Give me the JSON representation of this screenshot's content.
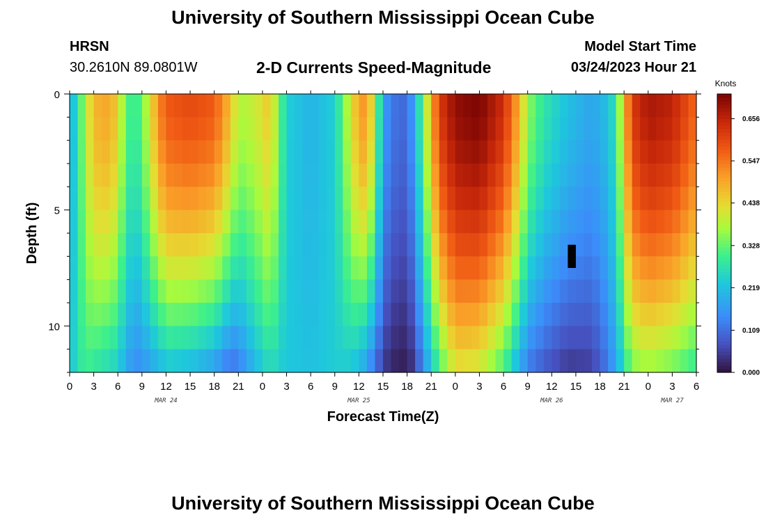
{
  "header": {
    "title": "University of Southern Mississippi Ocean Cube",
    "station": "HRSN",
    "coords": "30.2610N  89.0801W",
    "subtitle": "2-D Currents Speed-Magnitude",
    "start_label": "Model Start Time",
    "start_time": "03/24/2023 Hour 21"
  },
  "footer": {
    "title": "University of Southern Mississippi Ocean Cube"
  },
  "chart_data": {
    "type": "heatmap",
    "title": "2-D Currents Speed-Magnitude",
    "xlabel": "Forecast Time(Z)",
    "ylabel": "Depth (ft)",
    "colorbar_label": "Knots",
    "x_hours": [
      0,
      78
    ],
    "x_tick_labels": [
      "0",
      "3",
      "6",
      "9",
      "12",
      "15",
      "18",
      "21",
      "0",
      "3",
      "6",
      "9",
      "12",
      "15",
      "18",
      "21",
      "0",
      "3",
      "6",
      "9",
      "12",
      "15",
      "18",
      "21",
      "0",
      "3",
      "6"
    ],
    "date_labels": [
      {
        "label": "MAR 24",
        "hour": 12
      },
      {
        "label": "MAR 25",
        "hour": 36
      },
      {
        "label": "MAR 26",
        "hour": 60
      },
      {
        "label": "MAR 27",
        "hour": 75
      }
    ],
    "y_range": [
      0,
      12
    ],
    "y_tick_labels": [
      "0",
      "5",
      "10"
    ],
    "y_tick_values": [
      0,
      5,
      10
    ],
    "colorbar_ticks": [
      "0.000",
      "0.109",
      "0.219",
      "0.328",
      "0.438",
      "0.547",
      "0.656"
    ],
    "colorbar_tick_values": [
      0.0,
      0.109,
      0.219,
      0.328,
      0.438,
      0.547,
      0.656
    ],
    "vmin": 0.0,
    "vmax": 0.72,
    "depth_levels": [
      0,
      1,
      2,
      3,
      4,
      5,
      6,
      7,
      8,
      9,
      10,
      11,
      12
    ],
    "time_profile": [
      {
        "hour": 0,
        "surface": 0.18,
        "bottom": 0.22
      },
      {
        "hour": 1,
        "surface": 0.28,
        "bottom": 0.27
      },
      {
        "hour": 2,
        "surface": 0.38,
        "bottom": 0.3
      },
      {
        "hour": 3,
        "surface": 0.48,
        "bottom": 0.28
      },
      {
        "hour": 5,
        "surface": 0.5,
        "bottom": 0.25
      },
      {
        "hour": 6,
        "surface": 0.44,
        "bottom": 0.24
      },
      {
        "hour": 7,
        "surface": 0.33,
        "bottom": 0.18
      },
      {
        "hour": 8,
        "surface": 0.28,
        "bottom": 0.15
      },
      {
        "hour": 9,
        "surface": 0.33,
        "bottom": 0.14
      },
      {
        "hour": 10,
        "surface": 0.42,
        "bottom": 0.18
      },
      {
        "hour": 11,
        "surface": 0.52,
        "bottom": 0.18
      },
      {
        "hour": 12,
        "surface": 0.58,
        "bottom": 0.22
      },
      {
        "hour": 15,
        "surface": 0.6,
        "bottom": 0.2
      },
      {
        "hour": 18,
        "surface": 0.58,
        "bottom": 0.16
      },
      {
        "hour": 20,
        "surface": 0.47,
        "bottom": 0.1
      },
      {
        "hour": 21,
        "surface": 0.38,
        "bottom": 0.12
      },
      {
        "hour": 23,
        "surface": 0.4,
        "bottom": 0.2
      },
      {
        "hour": 25,
        "surface": 0.46,
        "bottom": 0.26
      },
      {
        "hour": 26,
        "surface": 0.34,
        "bottom": 0.24
      },
      {
        "hour": 27,
        "surface": 0.24,
        "bottom": 0.23
      },
      {
        "hour": 30,
        "surface": 0.2,
        "bottom": 0.22
      },
      {
        "hour": 33,
        "surface": 0.24,
        "bottom": 0.24
      },
      {
        "hour": 35,
        "surface": 0.42,
        "bottom": 0.23
      },
      {
        "hour": 36,
        "surface": 0.5,
        "bottom": 0.2
      },
      {
        "hour": 37,
        "surface": 0.52,
        "bottom": 0.16
      },
      {
        "hour": 38,
        "surface": 0.38,
        "bottom": 0.1
      },
      {
        "hour": 39,
        "surface": 0.18,
        "bottom": 0.05
      },
      {
        "hour": 40,
        "surface": 0.12,
        "bottom": 0.02
      },
      {
        "hour": 42,
        "surface": 0.1,
        "bottom": 0.01
      },
      {
        "hour": 43,
        "surface": 0.2,
        "bottom": 0.05
      },
      {
        "hour": 44,
        "surface": 0.34,
        "bottom": 0.14
      },
      {
        "hour": 46,
        "surface": 0.62,
        "bottom": 0.3
      },
      {
        "hour": 48,
        "surface": 0.7,
        "bottom": 0.42
      },
      {
        "hour": 51,
        "surface": 0.72,
        "bottom": 0.4
      },
      {
        "hour": 54,
        "surface": 0.64,
        "bottom": 0.3
      },
      {
        "hour": 56,
        "surface": 0.48,
        "bottom": 0.18
      },
      {
        "hour": 57,
        "surface": 0.36,
        "bottom": 0.12
      },
      {
        "hour": 59,
        "surface": 0.28,
        "bottom": 0.08
      },
      {
        "hour": 62,
        "surface": 0.22,
        "bottom": 0.04
      },
      {
        "hour": 65,
        "surface": 0.18,
        "bottom": 0.05
      },
      {
        "hour": 67,
        "surface": 0.22,
        "bottom": 0.12
      },
      {
        "hour": 68,
        "surface": 0.28,
        "bottom": 0.18
      },
      {
        "hour": 69,
        "surface": 0.46,
        "bottom": 0.26
      },
      {
        "hour": 70,
        "surface": 0.62,
        "bottom": 0.34
      },
      {
        "hour": 72,
        "surface": 0.68,
        "bottom": 0.36
      },
      {
        "hour": 75,
        "surface": 0.66,
        "bottom": 0.33
      },
      {
        "hour": 78,
        "surface": 0.56,
        "bottom": 0.28
      }
    ],
    "missing_cells": [
      {
        "hour": 62,
        "depth_from": 6.5,
        "depth_to": 7.5
      }
    ]
  }
}
